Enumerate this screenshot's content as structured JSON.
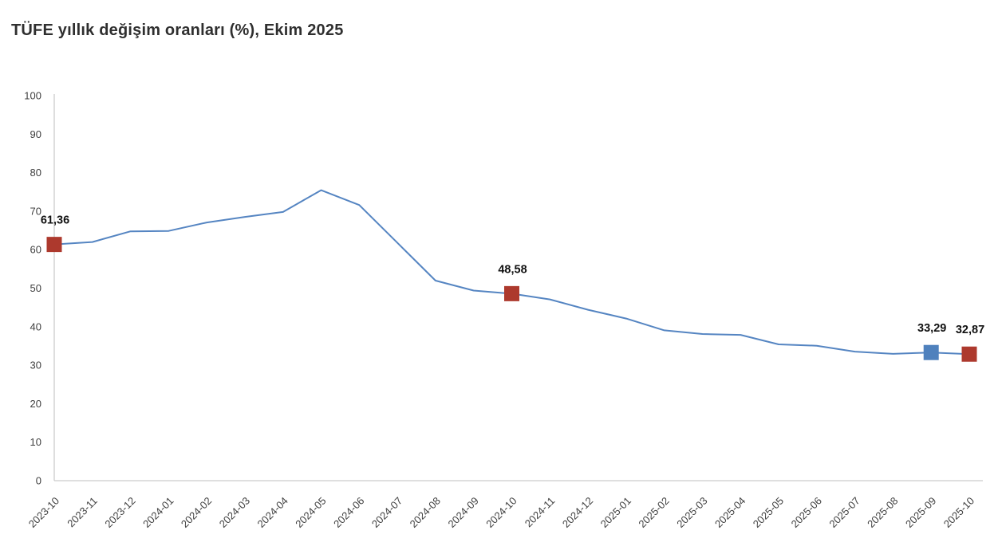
{
  "title": "TÜFE yıllık değişim oranları (%), Ekim 2025",
  "colors": {
    "line": "#5585c2",
    "marker_red": "#ad392d",
    "marker_blue": "#4f81bd",
    "axis_line": "#cccccc",
    "tick_text": "#3f3f3f",
    "point_label_text": "#111111",
    "title_text": "#2f2f2f",
    "background": "#ffffff"
  },
  "chart_data": {
    "type": "line",
    "title": "TÜFE yıllık değişim oranları (%), Ekim 2025",
    "xlabel": "",
    "ylabel": "",
    "ylim": [
      0,
      100
    ],
    "ytick_step": 10,
    "yticks": [
      0,
      10,
      20,
      30,
      40,
      50,
      60,
      70,
      80,
      90,
      100
    ],
    "grid": false,
    "legend": "none",
    "categories": [
      "2023-10",
      "2023-11",
      "2023-12",
      "2024-01",
      "2024-02",
      "2024-03",
      "2024-04",
      "2024-05",
      "2024-06",
      "2024-07",
      "2024-08",
      "2024-09",
      "2024-10",
      "2024-11",
      "2024-12",
      "2025-01",
      "2025-02",
      "2025-03",
      "2025-04",
      "2025-05",
      "2025-06",
      "2025-07",
      "2025-08",
      "2025-09",
      "2025-10"
    ],
    "values": [
      61.36,
      61.98,
      64.77,
      64.86,
      67.07,
      68.5,
      69.8,
      75.45,
      71.6,
      61.78,
      51.97,
      49.38,
      48.58,
      47.09,
      44.38,
      42.12,
      39.05,
      38.1,
      37.86,
      35.41,
      35.05,
      33.52,
      32.95,
      33.29,
      32.87
    ],
    "highlighted_points": [
      {
        "category": "2023-10",
        "value": 61.36,
        "label": "61,36",
        "color_key": "marker_red"
      },
      {
        "category": "2024-10",
        "value": 48.58,
        "label": "48,58",
        "color_key": "marker_red"
      },
      {
        "category": "2025-09",
        "value": 33.29,
        "label": "33,29",
        "color_key": "marker_blue"
      },
      {
        "category": "2025-10",
        "value": 32.87,
        "label": "32,87",
        "color_key": "marker_red"
      }
    ]
  }
}
